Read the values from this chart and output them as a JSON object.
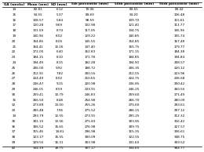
{
  "columns": [
    "GA (weeks)",
    "Mean (mm)",
    "SD (mm)",
    "5th percentile (mm)",
    "50th percentile (mm)",
    "95th percentile (mm)"
  ],
  "rows": [
    [
      14,
      82.81,
      6.12,
      70.06,
      83.55,
      89.42
    ],
    [
      15,
      94.55,
      5.37,
      89.69,
      94.2,
      106.48
    ],
    [
      16,
      108.57,
      5.84,
      98.59,
      109.7,
      115.61
    ],
    [
      17,
      120.28,
      9.69,
      102.98,
      121.4,
      113.77
    ],
    [
      18,
      131.59,
      8.74,
      117.05,
      134.75,
      145.96
    ],
    [
      19,
      140.96,
      8.02,
      129.22,
      140.85,
      155.74
    ],
    [
      20,
      154.86,
      8.06,
      145.55,
      154.85,
      167.48
    ],
    [
      21,
      164.41,
      10.16,
      147.4,
      165.75,
      179.77
    ],
    [
      22,
      172.05,
      6.4,
      162.83,
      171.15,
      184.38
    ],
    [
      23,
      184.15,
      8.1,
      171.78,
      184.85,
      194.84
    ],
    [
      24,
      194.49,
      8.15,
      182.28,
      194.9,
      208.57
    ],
    [
      25,
      206.0,
      9.92,
      188.72,
      206.35,
      220.12
    ],
    [
      26,
      212.91,
      7.82,
      200.55,
      212.55,
      223.96
    ],
    [
      27,
      224.49,
      8.02,
      210.65,
      224.75,
      236.68
    ],
    [
      28,
      236.47,
      9.15,
      220.98,
      236.85,
      250.42
    ],
    [
      29,
      246.01,
      8.59,
      233.91,
      246.25,
      260.55
    ],
    [
      30,
      259.41,
      10.79,
      246.83,
      259.6,
      271.49
    ],
    [
      31,
      266.5,
      8.48,
      254.98,
      266.7,
      280.09
    ],
    [
      32,
      273.89,
      13.0,
      255.26,
      275.6,
      293.61
    ],
    [
      33,
      285.48,
      7.96,
      275.52,
      286.15,
      297.12
    ],
    [
      34,
      293.79,
      12.55,
      273.91,
      295.25,
      312.32
    ],
    [
      35,
      301.15,
      13.56,
      275.83,
      303.85,
      316.42
    ],
    [
      36,
      306.52,
      15.65,
      276.98,
      309.75,
      327.57
    ],
    [
      37,
      315.46,
      14.81,
      296.98,
      315.35,
      336.61
    ],
    [
      38,
      323.37,
      15.55,
      300.09,
      322.55,
      348.75
    ],
    [
      39,
      329.55,
      16.31,
      303.98,
      331.6,
      359.52
    ],
    [
      40,
      334.39,
      18.75,
      307.17,
      334.65,
      364.77
    ]
  ],
  "font_size": 3.0,
  "header_font_size": 3.0,
  "fig_width": 2.6,
  "fig_height": 1.94,
  "dpi": 100
}
